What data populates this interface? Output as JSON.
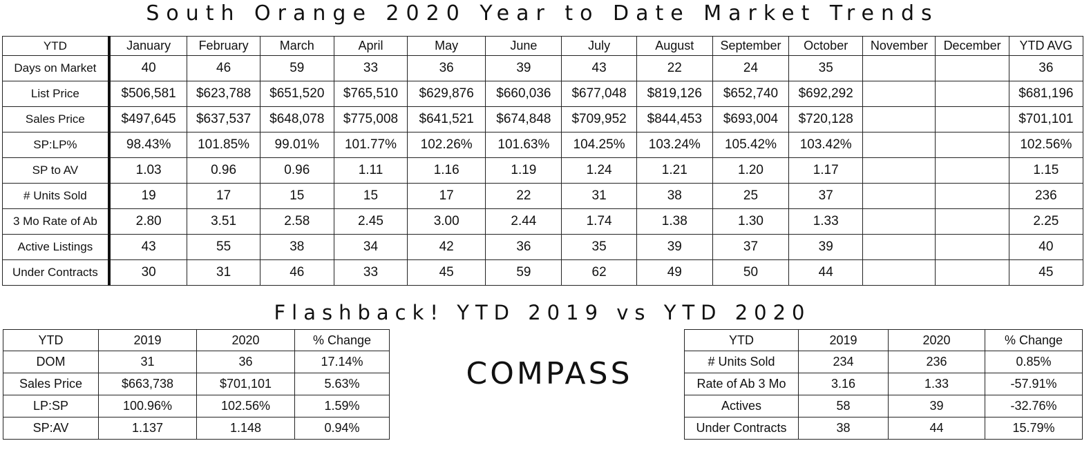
{
  "title": "South Orange 2020 Year to Date Market Trends",
  "main_table": {
    "corner": "YTD",
    "columns": [
      "January",
      "February",
      "March",
      "April",
      "May",
      "June",
      "July",
      "August",
      "September",
      "October",
      "November",
      "December",
      "YTD AVG"
    ],
    "rows": [
      {
        "label": "Days on Market",
        "values": [
          "40",
          "46",
          "59",
          "33",
          "36",
          "39",
          "43",
          "22",
          "24",
          "35",
          "",
          "",
          "36"
        ]
      },
      {
        "label": "List Price",
        "values": [
          "$506,581",
          "$623,788",
          "$651,520",
          "$765,510",
          "$629,876",
          "$660,036",
          "$677,048",
          "$819,126",
          "$652,740",
          "$692,292",
          "",
          "",
          "$681,196"
        ]
      },
      {
        "label": "Sales Price",
        "values": [
          "$497,645",
          "$637,537",
          "$648,078",
          "$775,008",
          "$641,521",
          "$674,848",
          "$709,952",
          "$844,453",
          "$693,004",
          "$720,128",
          "",
          "",
          "$701,101"
        ]
      },
      {
        "label": "SP:LP%",
        "values": [
          "98.43%",
          "101.85%",
          "99.01%",
          "101.77%",
          "102.26%",
          "101.63%",
          "104.25%",
          "103.24%",
          "105.42%",
          "103.42%",
          "",
          "",
          "102.56%"
        ]
      },
      {
        "label": "SP to AV",
        "values": [
          "1.03",
          "0.96",
          "0.96",
          "1.11",
          "1.16",
          "1.19",
          "1.24",
          "1.21",
          "1.20",
          "1.17",
          "",
          "",
          "1.15"
        ]
      },
      {
        "label": "# Units Sold",
        "values": [
          "19",
          "17",
          "15",
          "15",
          "17",
          "22",
          "31",
          "38",
          "25",
          "37",
          "",
          "",
          "236"
        ]
      },
      {
        "label": "3 Mo Rate of Ab",
        "values": [
          "2.80",
          "3.51",
          "2.58",
          "2.45",
          "3.00",
          "2.44",
          "1.74",
          "1.38",
          "1.30",
          "1.33",
          "",
          "",
          "2.25"
        ]
      },
      {
        "label": "Active Listings",
        "values": [
          "43",
          "55",
          "38",
          "34",
          "42",
          "36",
          "35",
          "39",
          "37",
          "39",
          "",
          "",
          "40"
        ]
      },
      {
        "label": "Under Contracts",
        "values": [
          "30",
          "31",
          "46",
          "33",
          "45",
          "59",
          "62",
          "49",
          "50",
          "44",
          "",
          "",
          "45"
        ]
      }
    ]
  },
  "flashback_title": "Flashback!  YTD 2019 vs YTD 2020",
  "flashback_left": {
    "columns": [
      "YTD",
      "2019",
      "2020",
      "% Change"
    ],
    "rows": [
      [
        "DOM",
        "31",
        "36",
        "17.14%"
      ],
      [
        "Sales Price",
        "$663,738",
        "$701,101",
        "5.63%"
      ],
      [
        "LP:SP",
        "100.96%",
        "102.56%",
        "1.59%"
      ],
      [
        "SP:AV",
        "1.137",
        "1.148",
        "0.94%"
      ]
    ]
  },
  "flashback_right": {
    "columns": [
      "YTD",
      "2019",
      "2020",
      "% Change"
    ],
    "rows": [
      [
        "# Units Sold",
        "234",
        "236",
        "0.85%"
      ],
      [
        "Rate of Ab 3 Mo",
        "3.16",
        "1.33",
        "-57.91%"
      ],
      [
        "Actives",
        "58",
        "39",
        "-32.76%"
      ],
      [
        "Under Contracts",
        "38",
        "44",
        "15.79%"
      ]
    ]
  },
  "logo": "COMPASS"
}
